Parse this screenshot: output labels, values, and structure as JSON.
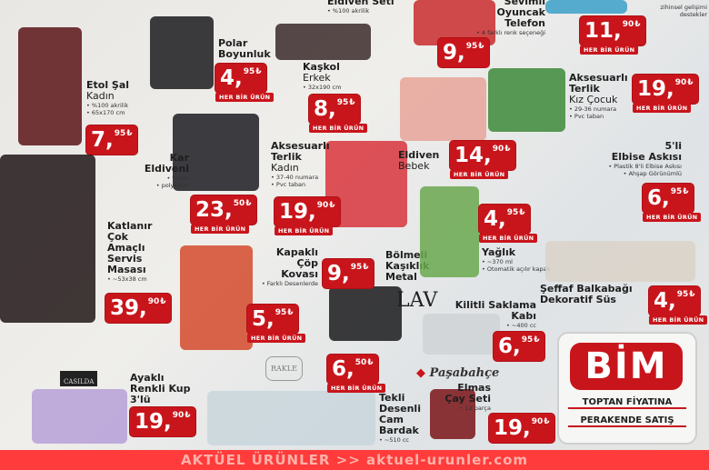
{
  "currency": "₺",
  "hbu_label": "HER BİR ÜRÜN",
  "top_note": "zihinsel gelişimi destekler",
  "products": [
    {
      "id": "etol-sal",
      "name": [
        "Etol Şal"
      ],
      "sub": "Kadın",
      "bullets": [
        "%100 akrilik",
        "65x170 cm"
      ],
      "price": [
        "7",
        "95"
      ],
      "hbu": false,
      "color": "#5a1418"
    },
    {
      "id": "polar-boyunluk",
      "name": [
        "Polar",
        "Boyunluk"
      ],
      "sub": "",
      "bullets": [],
      "price": [
        "4",
        "95"
      ],
      "hbu": true,
      "color": "#1b1b1d"
    },
    {
      "id": "kaskol",
      "name": [
        "Kaşkol"
      ],
      "sub": "Erkek",
      "bullets": [
        "32x190 cm"
      ],
      "price": [
        "8",
        "95"
      ],
      "hbu": true,
      "color": "#3a2a2a"
    },
    {
      "id": "eldiven-seti",
      "name": [
        "Eldiven Seti"
      ],
      "sub": "",
      "bullets": [
        "%100 akrilik"
      ],
      "price": null,
      "hbu": false,
      "color": null
    },
    {
      "id": "kar-eldiveni",
      "name": [
        "Kar",
        "Eldiveni"
      ],
      "sub": "",
      "bullets": [
        "%100",
        "polyester"
      ],
      "price": [
        "23",
        "50"
      ],
      "hbu": true,
      "color": "#1c1c22"
    },
    {
      "id": "terlik-kadin",
      "name": [
        "Aksesuarlı",
        "Terlik"
      ],
      "sub": "Kadın",
      "bullets": [
        "37-40 numara",
        "Pvc taban"
      ],
      "price": [
        "19",
        "90"
      ],
      "hbu": true,
      "color": "#d8343c"
    },
    {
      "id": "oyuncak-telefon",
      "name": [
        "Sevimli",
        "Oyuncak",
        "Telefon"
      ],
      "sub": "",
      "bullets": [
        "4 farklı renk seçeneği"
      ],
      "price": [
        "9",
        "95"
      ],
      "hbu": false,
      "color": "#c92a2e"
    },
    {
      "id": "puzzle",
      "name": [],
      "sub": "",
      "bullets": [],
      "price": [
        "11",
        "90"
      ],
      "hbu": true,
      "color": "#3aa0c8"
    },
    {
      "id": "terlik-kiz",
      "name": [
        "Aksesuarlı",
        "Terlik"
      ],
      "sub": "Kız Çocuk",
      "bullets": [
        "29-36 numara",
        "Pvc taban"
      ],
      "price": [
        "19",
        "90"
      ],
      "hbu": true,
      "color": "#3d8a3a"
    },
    {
      "id": "eldiven-bebek",
      "name": [
        "Eldiven"
      ],
      "sub": "Bebek",
      "bullets": [],
      "price": [
        "14",
        "90"
      ],
      "hbu": true,
      "color": "#e8a49a"
    },
    {
      "id": "elbise-askisi",
      "name": [
        "5'li",
        "Elbise Askısı"
      ],
      "sub": "",
      "bullets": [
        "Plastik 8'li Elbise Askısı",
        "Ahşap Görünümlü"
      ],
      "price": [
        "6",
        "95"
      ],
      "hbu": true,
      "color": null
    },
    {
      "id": "servis-masasi",
      "name": [
        "Katlanır",
        "Çok",
        "Amaçlı",
        "Servis",
        "Masası"
      ],
      "sub": "",
      "bullets": [
        "~53x38 cm"
      ],
      "price": [
        "39",
        "90"
      ],
      "hbu": false,
      "color": "#201516"
    },
    {
      "id": "cop-kovasi",
      "name": [
        "Kapaklı",
        "Çöp",
        "Kovası"
      ],
      "sub": "",
      "bullets": [
        "Farklı Desenlerde"
      ],
      "price": [
        "5",
        "95"
      ],
      "hbu": true,
      "color": "#d44a2c"
    },
    {
      "id": "kasiklik",
      "name": [
        "Bölmeli",
        "Kaşıklık",
        "Metal"
      ],
      "sub": "",
      "bullets": [],
      "price": [
        "9",
        "95"
      ],
      "hbu": false,
      "color": "#1a1a1c"
    },
    {
      "id": "yaglik",
      "name": [
        "Yağlık"
      ],
      "sub": "",
      "bullets": [
        "~370 ml",
        "Otomatik açılır kapak"
      ],
      "price": [
        "4",
        "95"
      ],
      "hbu": true,
      "color": "#6aa84f"
    },
    {
      "id": "balkabagi",
      "name": [
        "Şeffaf Balkabağı",
        "Dekoratif Süs"
      ],
      "sub": "",
      "bullets": [],
      "price": [
        "4",
        "95"
      ],
      "hbu": true,
      "color": "#d9d2c8"
    },
    {
      "id": "saklama-kabi",
      "name": [
        "Kilitli Saklama",
        "Kabı"
      ],
      "sub": "",
      "bullets": [
        "~400 cc"
      ],
      "price": [
        "6",
        "95"
      ],
      "hbu": false,
      "color": "#cfd3d6"
    },
    {
      "id": "kup",
      "name": [
        "Ayaklı",
        "Renkli Kup",
        "3'lü"
      ],
      "sub": "",
      "bullets": [],
      "price": [
        "19",
        "90"
      ],
      "hbu": false,
      "color": "#b7a0d8"
    },
    {
      "id": "cam-bardak",
      "name": [
        "Tekli",
        "Desenli",
        "Cam",
        "Bardak"
      ],
      "sub": "",
      "bullets": [
        "~510 cc"
      ],
      "price": [
        "6",
        "50"
      ],
      "hbu": true,
      "color": "#c9d6dc"
    },
    {
      "id": "cay-seti",
      "name": [
        "Elmas",
        "Çay Seti"
      ],
      "sub": "",
      "bullets": [
        "12 parça"
      ],
      "price": [
        "19",
        "90"
      ],
      "hbu": false,
      "color": "#7a1418"
    }
  ],
  "brands": {
    "lav": "LAV",
    "casilda": "CASILDA",
    "rakle": "RAKLE",
    "pasabahce": "Paşabahçe"
  },
  "bim": {
    "logo": "BİM",
    "line1": "TOPTAN FİYATINA",
    "line2": "PERAKENDE SATIŞ"
  },
  "footer": "AKTÜEL ÜRÜNLER >> aktuel-urunler.com"
}
